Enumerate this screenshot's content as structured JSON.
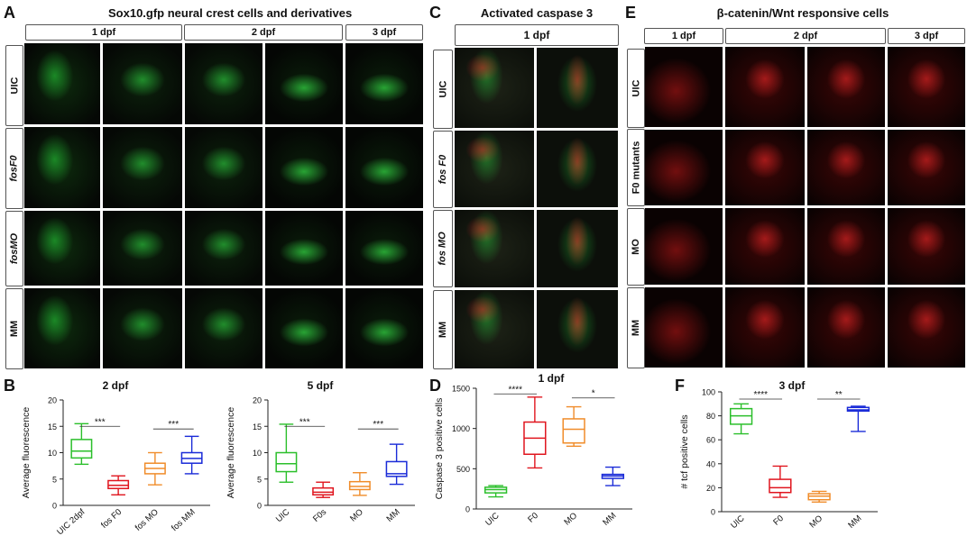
{
  "panel_letters": {
    "A": "A",
    "B": "B",
    "C": "C",
    "D": "D",
    "E": "E",
    "F": "F"
  },
  "panelA": {
    "title": "Sox10.gfp neural crest cells and derivatives",
    "headers": [
      "1 dpf",
      "2 dpf",
      "3 dpf"
    ],
    "rows": [
      "UIC",
      "fosF0",
      "fosMO",
      "MM"
    ]
  },
  "panelC": {
    "title": "Activated caspase 3",
    "headers": [
      "1 dpf"
    ],
    "rows": [
      "UIC",
      "fos F0",
      "fos MO",
      "MM"
    ]
  },
  "panelE": {
    "title": "β-catenin/Wnt responsive cells",
    "headers": [
      "1 dpf",
      "2 dpf",
      "3 dpf"
    ],
    "rows": [
      "UIC",
      "F0 mutants",
      "MO",
      "MM"
    ]
  },
  "chart_data": [
    {
      "type": "box",
      "title": "2 dpf",
      "ylabel": "Average fluorescence",
      "ylim": [
        0,
        20
      ],
      "yticks": [
        "0",
        "5",
        "10",
        "15",
        "20"
      ],
      "categories": [
        "UIC 2dpf",
        "fos F0",
        "fos MO",
        "fos MM"
      ],
      "colors": [
        "#2bbf2b",
        "#e0151e",
        "#f08c2a",
        "#1a2bd8"
      ],
      "boxes": [
        {
          "min": 7.8,
          "q1": 9,
          "median": 10.3,
          "q3": 12.5,
          "max": 15.5
        },
        {
          "min": 2,
          "q1": 3.2,
          "median": 3.8,
          "q3": 4.7,
          "max": 5.6
        },
        {
          "min": 3.9,
          "q1": 6,
          "median": 7,
          "q3": 8,
          "max": 10
        },
        {
          "min": 6,
          "q1": 8,
          "median": 8.9,
          "q3": 10,
          "max": 13.1
        }
      ],
      "annotations": [
        {
          "text": "***",
          "from": 0,
          "to": 1,
          "y": 15
        },
        {
          "text": "***",
          "from": 2,
          "to": 3,
          "y": 14.5
        }
      ]
    },
    {
      "type": "box",
      "title": "5 dpf",
      "ylabel": "Average fluorescence",
      "ylim": [
        0,
        20
      ],
      "yticks": [
        "0",
        "5",
        "10",
        "15",
        "20"
      ],
      "categories": [
        "UIC",
        "F0s",
        "MO",
        "MM"
      ],
      "colors": [
        "#2bbf2b",
        "#e0151e",
        "#f08c2a",
        "#1a2bd8"
      ],
      "boxes": [
        {
          "min": 4.4,
          "q1": 6.4,
          "median": 7.9,
          "q3": 10,
          "max": 15.4
        },
        {
          "min": 1.5,
          "q1": 2,
          "median": 2.5,
          "q3": 3.3,
          "max": 4.4
        },
        {
          "min": 1.9,
          "q1": 3,
          "median": 3.6,
          "q3": 4.5,
          "max": 6.2
        },
        {
          "min": 4,
          "q1": 5.5,
          "median": 6,
          "q3": 8.3,
          "max": 11.6
        }
      ],
      "annotations": [
        {
          "text": "***",
          "from": 0,
          "to": 1,
          "y": 15
        },
        {
          "text": "***",
          "from": 2,
          "to": 3,
          "y": 14.5
        }
      ]
    },
    {
      "type": "box",
      "title": "1 dpf",
      "ylabel": "Caspase 3 positive cells",
      "ylim": [
        0,
        1500
      ],
      "yticks": [
        "0",
        "500",
        "1000",
        "1500"
      ],
      "categories": [
        "UIC",
        "F0",
        "MO",
        "MM"
      ],
      "colors": [
        "#2bbf2b",
        "#e0151e",
        "#f08c2a",
        "#1a2bd8"
      ],
      "boxes": [
        {
          "min": 150,
          "q1": 200,
          "median": 240,
          "q3": 270,
          "max": 290
        },
        {
          "min": 510,
          "q1": 680,
          "median": 880,
          "q3": 1080,
          "max": 1390
        },
        {
          "min": 780,
          "q1": 820,
          "median": 990,
          "q3": 1120,
          "max": 1270
        },
        {
          "min": 290,
          "q1": 380,
          "median": 410,
          "q3": 430,
          "max": 520
        }
      ],
      "annotations": [
        {
          "text": "****",
          "from": 0,
          "to": 1,
          "y": 1430
        },
        {
          "text": "*",
          "from": 2,
          "to": 3,
          "y": 1380
        }
      ]
    },
    {
      "type": "box",
      "title": "3 dpf",
      "ylabel": "# tcf positive cells",
      "ylim": [
        0,
        100
      ],
      "yticks": [
        "0",
        "20",
        "40",
        "60",
        "80",
        "100"
      ],
      "categories": [
        "UIC",
        "F0",
        "MO",
        "MM"
      ],
      "colors": [
        "#2bbf2b",
        "#e0151e",
        "#f08c2a",
        "#1a2bd8"
      ],
      "boxes": [
        {
          "min": 65,
          "q1": 73,
          "median": 80,
          "q3": 86,
          "max": 90
        },
        {
          "min": 12,
          "q1": 16,
          "median": 20,
          "q3": 27,
          "max": 38
        },
        {
          "min": 8,
          "q1": 10,
          "median": 13,
          "q3": 15,
          "max": 17
        },
        {
          "min": 67,
          "q1": 84,
          "median": 85,
          "q3": 87,
          "max": 88
        }
      ],
      "annotations": [
        {
          "text": "****",
          "from": 0,
          "to": 1,
          "y": 94
        },
        {
          "text": "**",
          "from": 2,
          "to": 3,
          "y": 94
        }
      ]
    }
  ]
}
